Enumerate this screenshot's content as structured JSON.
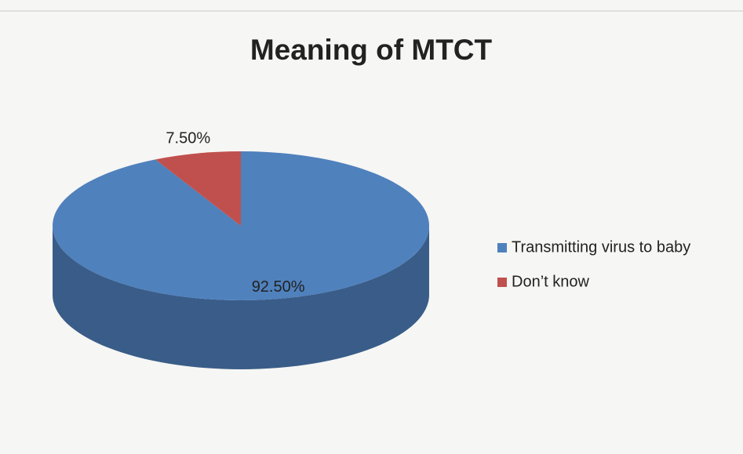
{
  "chart_data": {
    "type": "pie3d",
    "title": "Meaning of MTCT",
    "categories": [
      "Transmitting virus to baby",
      "Don’t know"
    ],
    "values": [
      92.5,
      7.5
    ],
    "value_labels": [
      "92.50%",
      "7.50%"
    ],
    "colors": [
      "#4f81bd",
      "#c0504d"
    ],
    "legend": "right"
  }
}
